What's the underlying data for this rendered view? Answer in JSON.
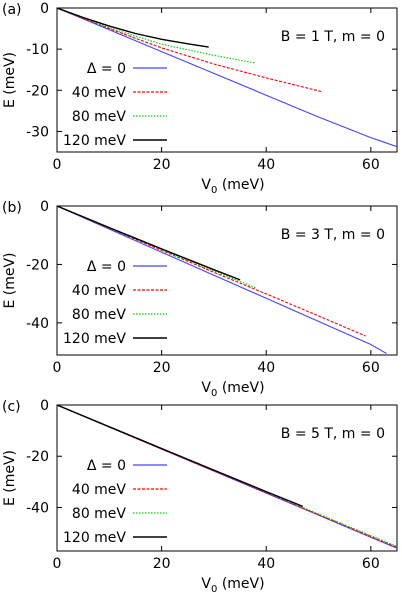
{
  "chart_data": [
    {
      "type": "line",
      "panel_label": "(a)",
      "annotation": "B = 1 T, m = 0",
      "xlabel": {
        "main": "V",
        "sub": "0",
        "unit": " (meV)"
      },
      "ylabel": "E (meV)",
      "xlim": [
        0,
        65
      ],
      "ylim": [
        -35,
        0
      ],
      "xticks": [
        "0",
        "20",
        "40",
        "60"
      ],
      "yticks": [
        "0",
        "-10",
        "-20",
        "-30"
      ],
      "xtick_values": [
        0,
        20,
        40,
        60
      ],
      "ytick_values": [
        0,
        -10,
        -20,
        -30
      ],
      "legend_placement": "left",
      "series": [
        {
          "name": "Δ = 0",
          "color": "#4444ff",
          "dash": "solid",
          "x": [
            0,
            10,
            20,
            30,
            40,
            50,
            60,
            65
          ],
          "y": [
            0,
            -5.3,
            -10.6,
            -15.9,
            -21.2,
            -26.5,
            -31.5,
            -33.7
          ]
        },
        {
          "name": "40 meV",
          "color": "#ff0000",
          "dash": "dashed",
          "x": [
            0,
            10,
            20,
            30,
            40,
            50.5
          ],
          "y": [
            0,
            -5.0,
            -9.7,
            -13.6,
            -17.0,
            -20.3
          ]
        },
        {
          "name": "80 meV",
          "color": "#00cc00",
          "dash": "dotted",
          "x": [
            0,
            10,
            20,
            30,
            38
          ],
          "y": [
            0,
            -4.8,
            -8.8,
            -11.5,
            -13.4
          ]
        },
        {
          "name": "120 meV",
          "color": "#000000",
          "dash": "solid",
          "x": [
            0,
            5,
            10,
            15,
            20,
            25,
            29
          ],
          "y": [
            0,
            -2.3,
            -4.4,
            -6.2,
            -7.6,
            -8.7,
            -9.5
          ]
        }
      ]
    },
    {
      "type": "line",
      "panel_label": "(b)",
      "annotation": "B = 3 T, m = 0",
      "xlabel": {
        "main": "V",
        "sub": "0",
        "unit": " (meV)"
      },
      "ylabel": "E (meV)",
      "xlim": [
        0,
        65
      ],
      "ylim": [
        -51,
        0
      ],
      "xticks": [
        "0",
        "20",
        "40",
        "60"
      ],
      "yticks": [
        "0",
        "-20",
        "-40"
      ],
      "xtick_values": [
        0,
        20,
        40,
        60
      ],
      "ytick_values": [
        0,
        -20,
        -40
      ],
      "legend_placement": "left",
      "series": [
        {
          "name": "Δ = 0",
          "color": "#4444ff",
          "dash": "solid",
          "x": [
            0,
            10,
            20,
            30,
            40,
            50,
            60,
            63
          ],
          "y": [
            0,
            -7.9,
            -15.8,
            -23.7,
            -31.6,
            -39.5,
            -47.4,
            -50.5
          ]
        },
        {
          "name": "40 meV",
          "color": "#ff0000",
          "dash": "dashed",
          "x": [
            0,
            10,
            20,
            30,
            40,
            50,
            59
          ],
          "y": [
            0,
            -7.6,
            -15.2,
            -22.7,
            -30.1,
            -37.6,
            -44.5
          ]
        },
        {
          "name": "80 meV",
          "color": "#00cc00",
          "dash": "dotted",
          "x": [
            0,
            10,
            20,
            30,
            38
          ],
          "y": [
            0,
            -7.5,
            -14.9,
            -22.2,
            -28.0
          ]
        },
        {
          "name": "120 meV",
          "color": "#000000",
          "dash": "solid",
          "x": [
            0,
            10,
            20,
            30,
            35
          ],
          "y": [
            0,
            -7.4,
            -14.7,
            -21.8,
            -25.3
          ]
        }
      ]
    },
    {
      "type": "line",
      "panel_label": "(c)",
      "annotation": "B = 5 T, m = 0",
      "xlabel": {
        "main": "V",
        "sub": "0",
        "unit": " (meV)"
      },
      "ylabel": "E (meV)",
      "xlim": [
        0,
        65
      ],
      "ylim": [
        -57,
        0
      ],
      "xticks": [
        "0",
        "20",
        "40",
        "60"
      ],
      "yticks": [
        "0",
        "-20",
        "-40"
      ],
      "xtick_values": [
        0,
        20,
        40,
        60
      ],
      "ytick_values": [
        0,
        -20,
        -40
      ],
      "legend_placement": "left",
      "series": [
        {
          "name": "Δ = 0",
          "color": "#4444ff",
          "dash": "solid",
          "x": [
            0,
            10,
            20,
            30,
            40,
            50,
            60,
            65
          ],
          "y": [
            0,
            -8.6,
            -17.2,
            -25.8,
            -34.4,
            -43.0,
            -51.6,
            -55.9
          ]
        },
        {
          "name": "40 meV",
          "color": "#ff0000",
          "dash": "dashed",
          "x": [
            0,
            10,
            20,
            30,
            40,
            50,
            60,
            65
          ],
          "y": [
            0,
            -8.6,
            -17.2,
            -25.7,
            -34.2,
            -42.8,
            -51.3,
            -55.6
          ]
        },
        {
          "name": "80 meV",
          "color": "#00cc00",
          "dash": "dotted",
          "x": [
            0,
            10,
            20,
            30,
            40,
            50,
            60,
            65
          ],
          "y": [
            0,
            -8.5,
            -17.0,
            -25.5,
            -34.0,
            -42.5,
            -51.0,
            -55.2
          ]
        },
        {
          "name": "120 meV",
          "color": "#000000",
          "dash": "solid",
          "x": [
            0,
            10,
            20,
            30,
            40,
            47
          ],
          "y": [
            0,
            -8.5,
            -17.0,
            -25.4,
            -33.8,
            -39.6
          ]
        }
      ]
    }
  ]
}
